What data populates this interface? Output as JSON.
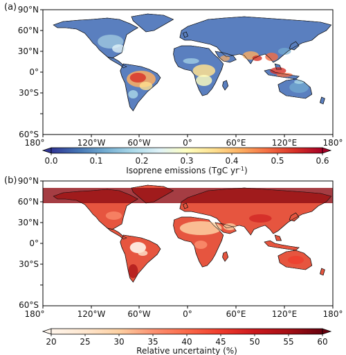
{
  "panels": [
    {
      "id": "a",
      "label": "(a)",
      "lat_ticks": [
        "90°N",
        "60°N",
        "30°N",
        "0°",
        "30°S",
        "60°S"
      ],
      "lon_ticks": [
        "180°",
        "120°W",
        "60°W",
        "0°",
        "60°E",
        "120°E",
        "180°"
      ],
      "colorbar": {
        "label_main": "Isoprene emissions (TgC yr",
        "label_sup": "-1",
        "label_tail": ")",
        "ticks": [
          "0.0",
          "0.1",
          "0.2",
          "0.3",
          "0.4",
          "0.5",
          "0.6"
        ],
        "range": [
          0.0,
          0.6
        ],
        "extend": "both",
        "colormap": [
          "#313695",
          "#4575b4",
          "#74add1",
          "#abd9e9",
          "#e0f3f8",
          "#ffffbf",
          "#fee090",
          "#fdae61",
          "#f46d43",
          "#d73027",
          "#a50026"
        ]
      }
    },
    {
      "id": "b",
      "label": "(b)",
      "lat_ticks": [
        "90°N",
        "60°N",
        "30°N",
        "0°",
        "30°S",
        "60°S"
      ],
      "lon_ticks": [
        "180°",
        "120°W",
        "60°W",
        "0°",
        "60°E",
        "120°E",
        "180°"
      ],
      "colorbar": {
        "label_main": "Relative uncertainty (%)",
        "label_sup": "",
        "label_tail": "",
        "ticks": [
          "20",
          "25",
          "30",
          "35",
          "40",
          "45",
          "50",
          "55",
          "60"
        ],
        "range": [
          20,
          60
        ],
        "extend": "both",
        "colormap": [
          "#fff5eb",
          "#fee6ce",
          "#fdd0a2",
          "#fc9272",
          "#fb6a4a",
          "#ef3b2c",
          "#cb181d",
          "#a50f15",
          "#67000d"
        ]
      }
    }
  ]
}
